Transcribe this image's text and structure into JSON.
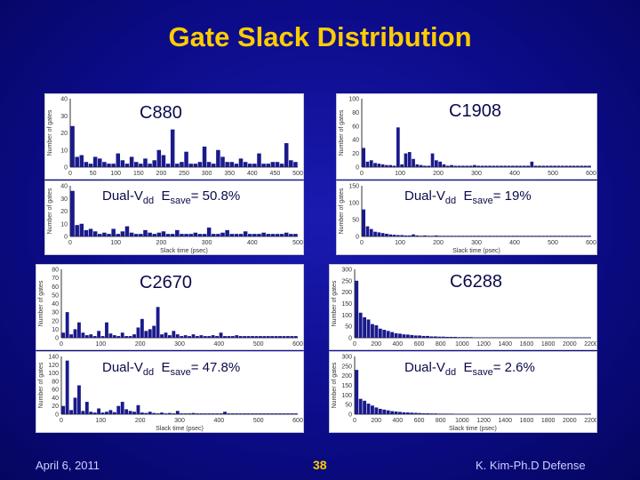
{
  "title": "Gate Slack Distribution",
  "footer": {
    "date": "April 6, 2011",
    "page": "38",
    "author": "K. Kim-Ph.D Defense"
  },
  "colors": {
    "bar": "#1a1a8c",
    "background": "#0c0c8a",
    "title": "#ffcc00"
  },
  "chart_data": [
    {
      "type": "bar",
      "title": "C880",
      "subtitle": "",
      "ylabel": "Number of gates",
      "xlabel": "",
      "xlim": [
        0,
        500
      ],
      "ylim": [
        0,
        40
      ],
      "xticks": [
        "0",
        "50",
        "100",
        "150",
        "200",
        "250",
        "300",
        "350",
        "400",
        "450",
        "500"
      ],
      "yticks": [
        "0",
        "10",
        "20",
        "30",
        "40"
      ],
      "values": [
        24,
        6,
        7,
        3,
        2,
        6,
        5,
        3,
        2,
        2,
        8,
        4,
        2,
        6,
        3,
        2,
        5,
        2,
        4,
        10,
        7,
        2,
        22,
        2,
        3,
        9,
        2,
        2,
        3,
        12,
        3,
        2,
        10,
        6,
        3,
        3,
        2,
        5,
        3,
        2,
        2,
        8,
        2,
        2,
        3,
        3,
        2,
        14,
        4,
        3
      ]
    },
    {
      "type": "bar",
      "title": "",
      "subtitle": "Dual-Vdd  Esave= 50.8%",
      "vdd_label": "Dual-V",
      "vdd_sub": "dd",
      "esave_label": "E",
      "esave_sub": "save",
      "esave_value": "= 50.8%",
      "ylabel": "Number of gates",
      "xlabel": "Slack time (psec)",
      "xlim": [
        0,
        500
      ],
      "ylim": [
        0,
        40
      ],
      "xticks": [
        "0",
        "100",
        "200",
        "300",
        "400",
        "500"
      ],
      "yticks": [
        "0",
        "10",
        "20",
        "30",
        "40"
      ],
      "values": [
        36,
        9,
        10,
        5,
        6,
        4,
        2,
        3,
        2,
        6,
        2,
        4,
        8,
        3,
        2,
        2,
        5,
        3,
        2,
        3,
        4,
        2,
        2,
        5,
        2,
        2,
        2,
        3,
        2,
        2,
        7,
        2,
        2,
        3,
        5,
        2,
        2,
        2,
        4,
        2,
        2,
        2,
        3,
        2,
        2,
        2,
        2,
        3,
        2,
        2
      ]
    },
    {
      "type": "bar",
      "title": "C1908",
      "subtitle": "",
      "ylabel": "Number of gates",
      "xlabel": "",
      "xlim": [
        0,
        600
      ],
      "ylim": [
        0,
        100
      ],
      "xticks": [
        "0",
        "100",
        "200",
        "300",
        "400",
        "500",
        "600"
      ],
      "yticks": [
        "0",
        "20",
        "40",
        "60",
        "80",
        "100"
      ],
      "values": [
        28,
        8,
        10,
        6,
        5,
        4,
        3,
        3,
        2,
        58,
        4,
        20,
        22,
        12,
        4,
        3,
        2,
        2,
        20,
        10,
        8,
        4,
        2,
        3,
        2,
        2,
        2,
        2,
        2,
        3,
        2,
        2,
        2,
        2,
        2,
        2,
        2,
        2,
        2,
        2,
        2,
        2,
        2,
        2,
        8,
        2,
        2,
        2,
        2,
        2,
        2,
        2,
        2,
        2,
        2,
        2,
        2,
        2,
        2,
        2
      ]
    },
    {
      "type": "bar",
      "title": "",
      "subtitle": "Dual-Vdd  Esave= 19%",
      "vdd_label": "Dual-V",
      "vdd_sub": "dd",
      "esave_label": "E",
      "esave_sub": "save",
      "esave_value": "= 19%",
      "ylabel": "Number of gates",
      "xlabel": "Slack time (psec)",
      "xlim": [
        0,
        600
      ],
      "ylim": [
        0,
        150
      ],
      "xticks": [
        "0",
        "100",
        "200",
        "300",
        "400",
        "500",
        "600"
      ],
      "yticks": [
        "0",
        "50",
        "100",
        "150"
      ],
      "values": [
        80,
        30,
        22,
        14,
        12,
        10,
        8,
        6,
        5,
        4,
        4,
        3,
        3,
        6,
        3,
        2,
        3,
        2,
        2,
        3,
        2,
        2,
        2,
        2,
        2,
        2,
        2,
        2,
        2,
        2,
        2,
        2,
        2,
        2,
        2,
        2,
        2,
        2,
        2,
        2,
        2,
        2,
        2,
        2,
        2,
        2,
        2,
        2,
        2,
        2,
        2,
        2,
        2,
        2,
        2,
        2,
        2,
        2,
        2,
        2
      ]
    },
    {
      "type": "bar",
      "title": "C2670",
      "subtitle": "",
      "ylabel": "Number of gates",
      "xlabel": "",
      "xlim": [
        0,
        600
      ],
      "ylim": [
        0,
        80
      ],
      "xticks": [
        "0",
        "100",
        "200",
        "300",
        "400",
        "500",
        "600"
      ],
      "yticks": [
        "0",
        "10",
        "20",
        "30",
        "40",
        "50",
        "60",
        "70",
        "80"
      ],
      "values": [
        6,
        30,
        4,
        10,
        18,
        6,
        3,
        4,
        2,
        8,
        2,
        18,
        5,
        3,
        2,
        6,
        2,
        2,
        4,
        12,
        22,
        8,
        10,
        14,
        36,
        4,
        6,
        3,
        8,
        4,
        2,
        3,
        2,
        4,
        2,
        3,
        2,
        2,
        3,
        2,
        6,
        2,
        2,
        2,
        3,
        2,
        2,
        2,
        2,
        2,
        2,
        2,
        2,
        2,
        2,
        2,
        2,
        2,
        2,
        2
      ]
    },
    {
      "type": "bar",
      "title": "",
      "subtitle": "Dual-Vdd  Esave= 47.8%",
      "vdd_label": "Dual-V",
      "vdd_sub": "dd",
      "esave_label": "E",
      "esave_sub": "save",
      "esave_value": "= 47.8%",
      "ylabel": "Number of gates",
      "xlabel": "Slack time (psec)",
      "xlim": [
        0,
        600
      ],
      "ylim": [
        0,
        140
      ],
      "xticks": [
        "0",
        "100",
        "200",
        "300",
        "400",
        "500",
        "600"
      ],
      "yticks": [
        "0",
        "20",
        "40",
        "60",
        "80",
        "100",
        "120",
        "140"
      ],
      "values": [
        20,
        130,
        10,
        40,
        70,
        8,
        30,
        6,
        4,
        14,
        4,
        6,
        10,
        5,
        20,
        30,
        12,
        8,
        6,
        22,
        4,
        3,
        6,
        3,
        2,
        4,
        2,
        3,
        2,
        8,
        2,
        2,
        2,
        3,
        2,
        2,
        2,
        2,
        2,
        2,
        2,
        6,
        2,
        2,
        2,
        2,
        2,
        2,
        2,
        2,
        2,
        2,
        2,
        2,
        2,
        2,
        2,
        2,
        2,
        2
      ]
    },
    {
      "type": "bar",
      "title": "C6288",
      "subtitle": "",
      "ylabel": "Number of gates",
      "xlabel": "",
      "xlim": [
        0,
        2200
      ],
      "ylim": [
        0,
        300
      ],
      "xticks": [
        "0",
        "200",
        "400",
        "600",
        "800",
        "1000",
        "1200",
        "1400",
        "1600",
        "1800",
        "2000",
        "2200"
      ],
      "yticks": [
        "0",
        "50",
        "100",
        "150",
        "200",
        "250",
        "300"
      ],
      "values": [
        250,
        110,
        90,
        80,
        60,
        55,
        40,
        35,
        30,
        25,
        20,
        18,
        15,
        14,
        12,
        10,
        10,
        8,
        8,
        6,
        6,
        5,
        5,
        4,
        4,
        4,
        3,
        3,
        3,
        3,
        2,
        2,
        2,
        2,
        2,
        2,
        2,
        2,
        2,
        2,
        2,
        2,
        2,
        2,
        2,
        2,
        2,
        2,
        2,
        2,
        2,
        2,
        2,
        2,
        2,
        2,
        2,
        2,
        2,
        2
      ]
    },
    {
      "type": "bar",
      "title": "",
      "subtitle": "Dual-Vdd  Esave= 2.6%",
      "vdd_label": "Dual-V",
      "vdd_sub": "dd",
      "esave_label": "E",
      "esave_sub": "save",
      "esave_value": "= 2.6%",
      "ylabel": "Number of gates",
      "xlabel": "Slack time (psec)",
      "xlim": [
        0,
        2200
      ],
      "ylim": [
        0,
        300
      ],
      "xticks": [
        "0",
        "200",
        "400",
        "600",
        "800",
        "1000",
        "1200",
        "1400",
        "1600",
        "1800",
        "2000",
        "2200"
      ],
      "yticks": [
        "0",
        "50",
        "100",
        "150",
        "200",
        "250",
        "300"
      ],
      "values": [
        230,
        80,
        70,
        55,
        45,
        35,
        28,
        24,
        20,
        16,
        14,
        12,
        10,
        9,
        8,
        7,
        6,
        5,
        5,
        4,
        4,
        3,
        3,
        3,
        3,
        2,
        2,
        2,
        2,
        2,
        2,
        2,
        2,
        2,
        2,
        2,
        2,
        2,
        2,
        2,
        2,
        2,
        2,
        2,
        2,
        2,
        2,
        2,
        2,
        2,
        2,
        2,
        2,
        2,
        2,
        2,
        2,
        2,
        2,
        2
      ]
    }
  ]
}
